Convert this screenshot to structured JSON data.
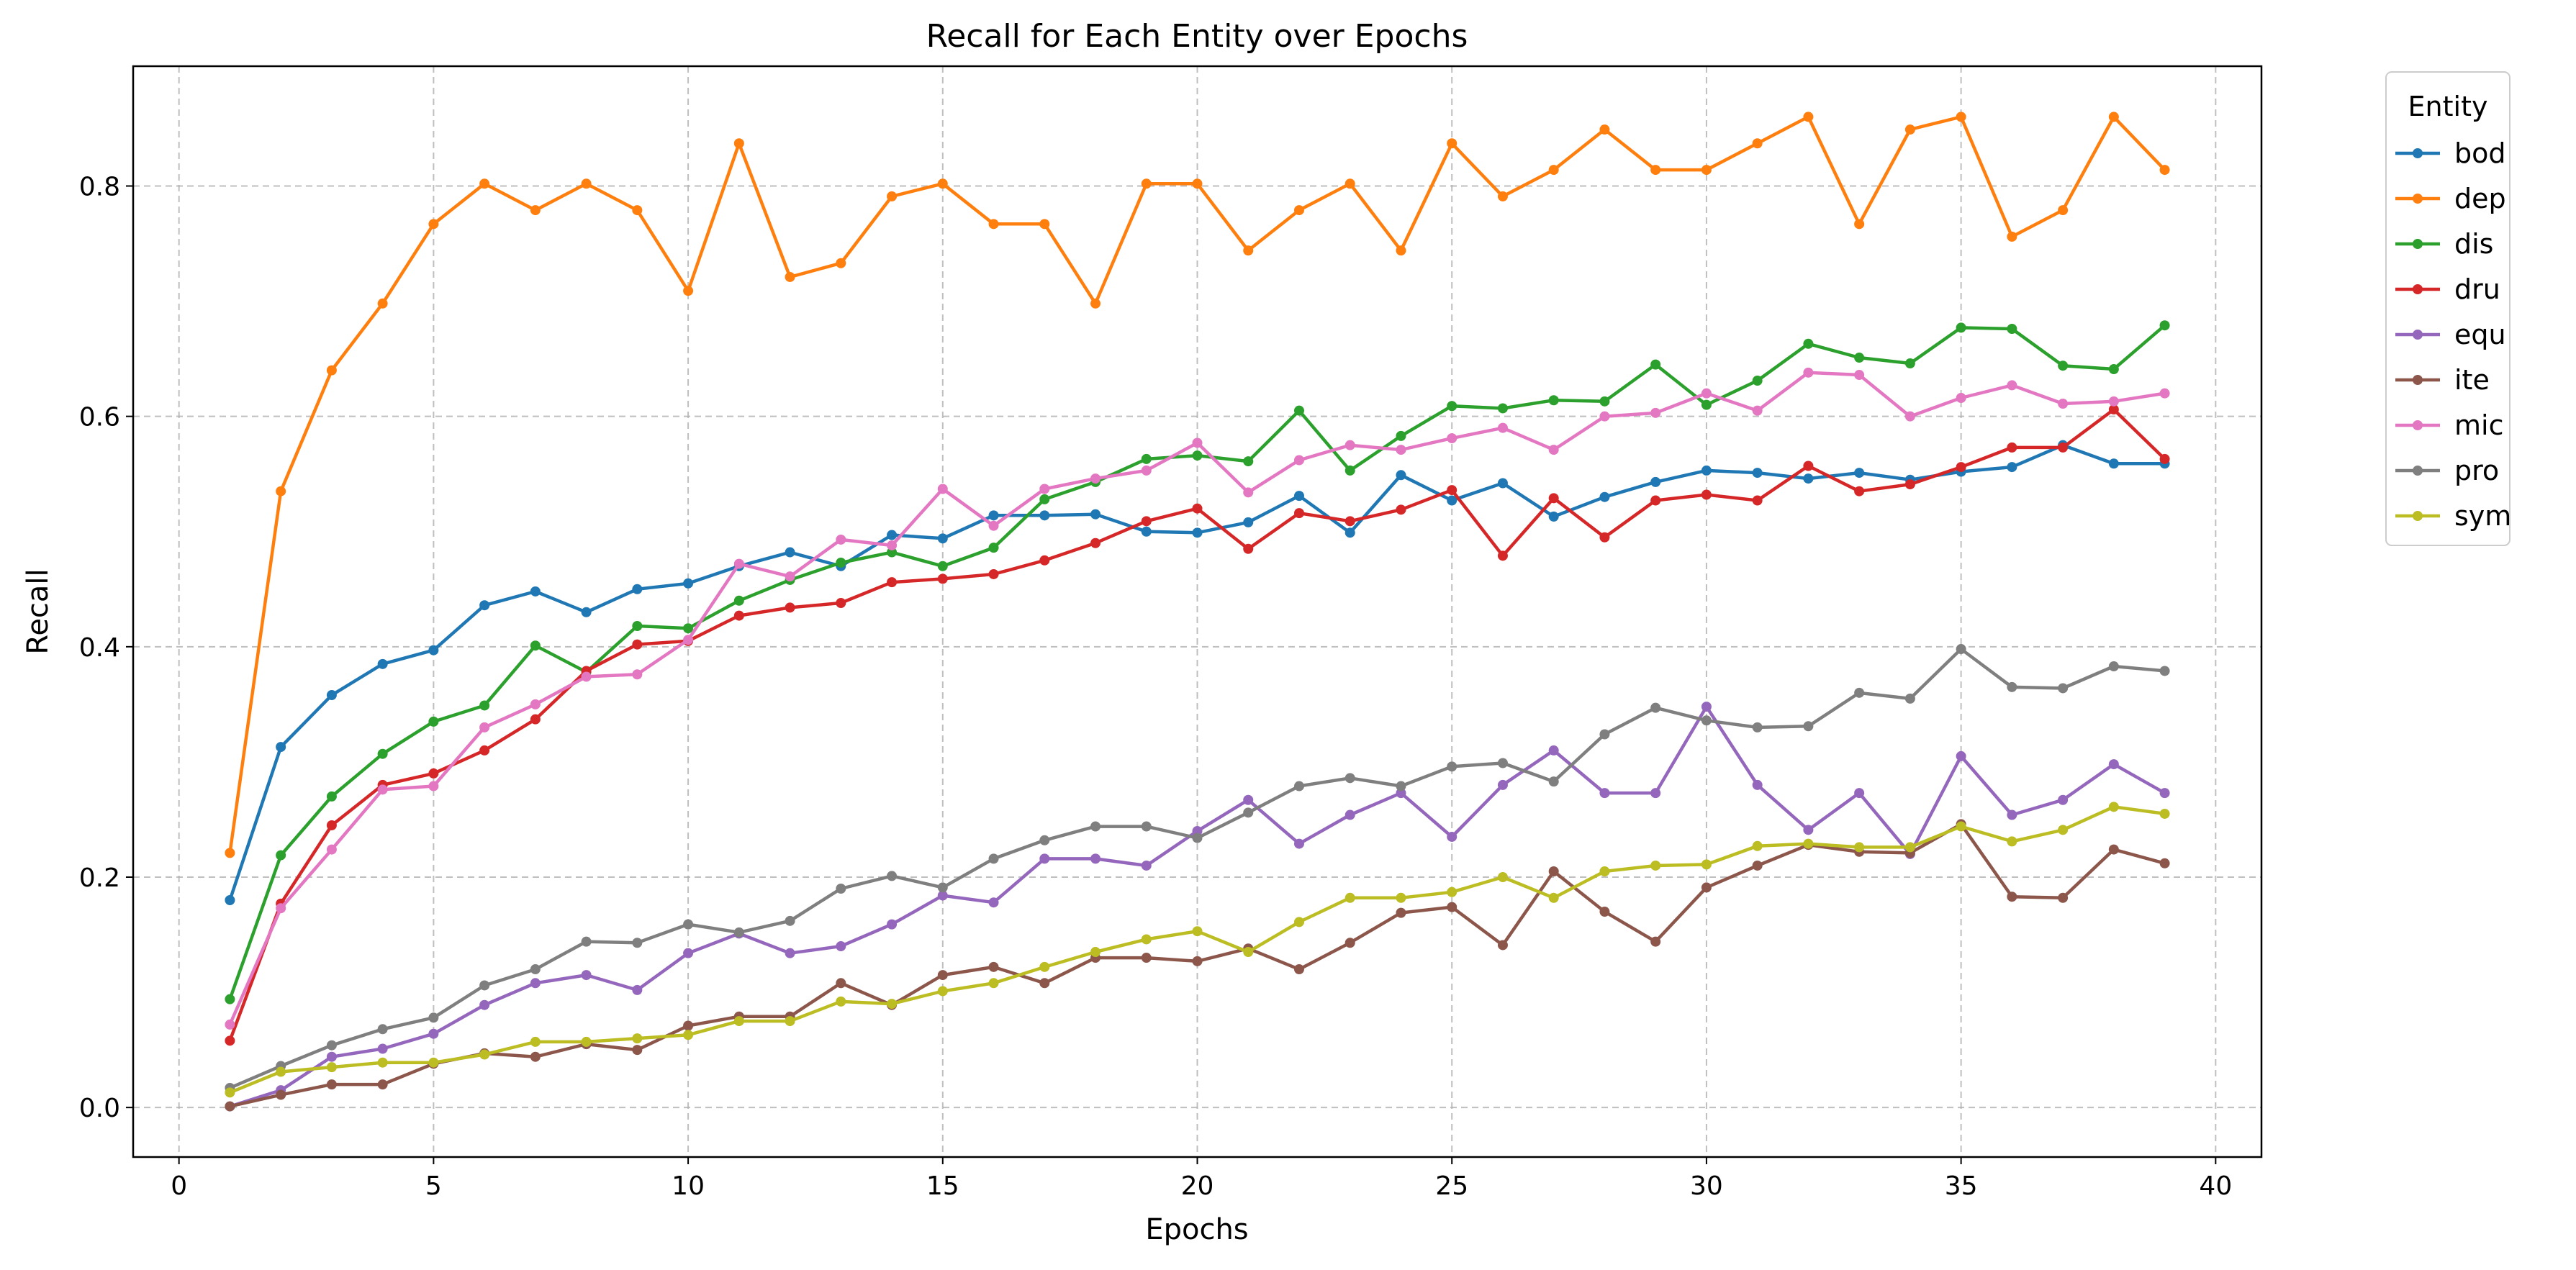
{
  "chart_data": {
    "type": "line",
    "title": "Recall for Each Entity over Epochs",
    "xlabel": "Epochs",
    "ylabel": "Recall",
    "xlim": [
      -0.9,
      40.9
    ],
    "ylim": [
      -0.043,
      0.904
    ],
    "xticks": [
      0,
      5,
      10,
      15,
      20,
      25,
      30,
      35,
      40
    ],
    "xtick_labels": [
      "0",
      "5",
      "10",
      "15",
      "20",
      "25",
      "30",
      "35",
      "40"
    ],
    "yticks": [
      0.0,
      0.2,
      0.4,
      0.6,
      0.8
    ],
    "ytick_labels": [
      "0.0",
      "0.2",
      "0.4",
      "0.6",
      "0.8"
    ],
    "grid": true,
    "legend": {
      "title": "Entity",
      "placement": "outside-upper-right"
    },
    "x": [
      1,
      2,
      3,
      4,
      5,
      6,
      7,
      8,
      9,
      10,
      11,
      12,
      13,
      14,
      15,
      16,
      17,
      18,
      19,
      20,
      21,
      22,
      23,
      24,
      25,
      26,
      27,
      28,
      29,
      30,
      31,
      32,
      33,
      34,
      35,
      36,
      37,
      38,
      39
    ],
    "series": [
      {
        "name": "bod",
        "color": "#1f77b4",
        "values": [
          0.18,
          0.313,
          0.358,
          0.385,
          0.397,
          0.436,
          0.448,
          0.43,
          0.45,
          0.455,
          0.47,
          0.482,
          0.47,
          0.497,
          0.494,
          0.514,
          0.514,
          0.515,
          0.5,
          0.499,
          0.508,
          0.531,
          0.499,
          0.549,
          0.527,
          0.542,
          0.513,
          0.53,
          0.543,
          0.553,
          0.551,
          0.546,
          0.551,
          0.545,
          0.552,
          0.556,
          0.575,
          0.559,
          0.559
        ]
      },
      {
        "name": "dep",
        "color": "#ff7f0e",
        "values": [
          0.221,
          0.535,
          0.64,
          0.698,
          0.767,
          0.802,
          0.779,
          0.802,
          0.779,
          0.709,
          0.837,
          0.721,
          0.733,
          0.791,
          0.802,
          0.767,
          0.767,
          0.698,
          0.802,
          0.802,
          0.744,
          0.779,
          0.802,
          0.744,
          0.837,
          0.791,
          0.814,
          0.849,
          0.814,
          0.814,
          0.837,
          0.86,
          0.767,
          0.849,
          0.86,
          0.756,
          0.779,
          0.86,
          0.814
        ]
      },
      {
        "name": "dis",
        "color": "#2ca02c",
        "values": [
          0.094,
          0.219,
          0.27,
          0.307,
          0.335,
          0.349,
          0.401,
          0.378,
          0.418,
          0.416,
          0.44,
          0.458,
          0.473,
          0.482,
          0.47,
          0.486,
          0.528,
          0.543,
          0.563,
          0.566,
          0.561,
          0.605,
          0.553,
          0.583,
          0.609,
          0.607,
          0.614,
          0.613,
          0.645,
          0.61,
          0.631,
          0.663,
          0.651,
          0.646,
          0.677,
          0.676,
          0.644,
          0.641,
          0.679
        ]
      },
      {
        "name": "dru",
        "color": "#d62728",
        "values": [
          0.058,
          0.177,
          0.245,
          0.28,
          0.29,
          0.31,
          0.337,
          0.379,
          0.402,
          0.405,
          0.427,
          0.434,
          0.438,
          0.456,
          0.459,
          0.463,
          0.475,
          0.49,
          0.509,
          0.52,
          0.485,
          0.516,
          0.509,
          0.519,
          0.536,
          0.479,
          0.529,
          0.495,
          0.527,
          0.532,
          0.527,
          0.557,
          0.535,
          0.541,
          0.556,
          0.573,
          0.573,
          0.606,
          0.563
        ]
      },
      {
        "name": "equ",
        "color": "#9467bd",
        "values": [
          0.001,
          0.015,
          0.044,
          0.051,
          0.064,
          0.089,
          0.108,
          0.115,
          0.102,
          0.134,
          0.151,
          0.134,
          0.14,
          0.159,
          0.184,
          0.178,
          0.216,
          0.216,
          0.21,
          0.24,
          0.267,
          0.229,
          0.254,
          0.273,
          0.235,
          0.28,
          0.31,
          0.273,
          0.273,
          0.348,
          0.28,
          0.241,
          0.273,
          0.22,
          0.305,
          0.254,
          0.267,
          0.298,
          0.273
        ]
      },
      {
        "name": "ite",
        "color": "#8c564b",
        "values": [
          0.001,
          0.011,
          0.02,
          0.02,
          0.038,
          0.047,
          0.044,
          0.055,
          0.05,
          0.071,
          0.079,
          0.079,
          0.108,
          0.089,
          0.115,
          0.122,
          0.108,
          0.13,
          0.13,
          0.127,
          0.138,
          0.12,
          0.143,
          0.169,
          0.174,
          0.141,
          0.205,
          0.17,
          0.144,
          0.191,
          0.21,
          0.228,
          0.222,
          0.221,
          0.246,
          0.183,
          0.182,
          0.224,
          0.212
        ]
      },
      {
        "name": "mic",
        "color": "#e377c2",
        "values": [
          0.072,
          0.173,
          0.224,
          0.276,
          0.279,
          0.33,
          0.35,
          0.374,
          0.376,
          0.406,
          0.472,
          0.461,
          0.493,
          0.488,
          0.537,
          0.505,
          0.537,
          0.546,
          0.553,
          0.577,
          0.534,
          0.562,
          0.575,
          0.571,
          0.581,
          0.59,
          0.571,
          0.6,
          0.603,
          0.62,
          0.605,
          0.638,
          0.636,
          0.6,
          0.616,
          0.627,
          0.611,
          0.613,
          0.62
        ]
      },
      {
        "name": "pro",
        "color": "#7f7f7f",
        "values": [
          0.017,
          0.036,
          0.054,
          0.068,
          0.078,
          0.106,
          0.12,
          0.144,
          0.143,
          0.159,
          0.152,
          0.162,
          0.19,
          0.201,
          0.191,
          0.216,
          0.232,
          0.244,
          0.244,
          0.234,
          0.256,
          0.279,
          0.286,
          0.279,
          0.296,
          0.299,
          0.283,
          0.324,
          0.347,
          0.336,
          0.33,
          0.331,
          0.36,
          0.355,
          0.398,
          0.365,
          0.364,
          0.383,
          0.379
        ]
      },
      {
        "name": "sym",
        "color": "#bcbd22",
        "values": [
          0.013,
          0.031,
          0.035,
          0.039,
          0.039,
          0.046,
          0.057,
          0.057,
          0.06,
          0.063,
          0.075,
          0.075,
          0.092,
          0.09,
          0.101,
          0.108,
          0.122,
          0.135,
          0.146,
          0.153,
          0.135,
          0.161,
          0.182,
          0.182,
          0.187,
          0.2,
          0.182,
          0.205,
          0.21,
          0.211,
          0.227,
          0.229,
          0.226,
          0.226,
          0.244,
          0.231,
          0.241,
          0.261,
          0.255
        ]
      }
    ]
  }
}
